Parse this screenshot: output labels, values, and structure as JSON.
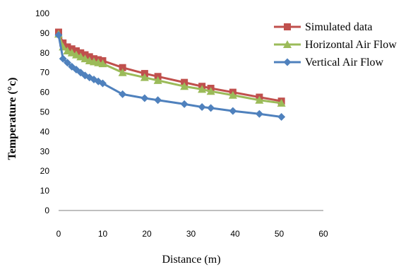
{
  "chart_data": {
    "type": "line",
    "title": "",
    "xlabel": "Distance (m)",
    "ylabel": "Temperature (°c)",
    "xlim": [
      0,
      60
    ],
    "ylim": [
      0,
      100
    ],
    "xticks": [
      0,
      10,
      20,
      30,
      40,
      50,
      60
    ],
    "yticks": [
      0,
      10,
      20,
      30,
      40,
      50,
      60,
      70,
      80,
      90,
      100
    ],
    "grid": false,
    "legend_position": "top-right",
    "series": [
      {
        "name": "Simulated data",
        "color": "#c0504d",
        "marker": "square",
        "x": [
          0,
          1,
          2,
          3,
          4,
          5,
          6,
          7,
          8,
          9,
          10,
          14.5,
          19.5,
          22.5,
          28.5,
          32.5,
          34.5,
          39.5,
          45.5,
          50.5
        ],
        "y": [
          90.5,
          85,
          83,
          82,
          81,
          80,
          79,
          78,
          77,
          76.5,
          76,
          72.5,
          69.5,
          68,
          65,
          63,
          62,
          60,
          57.5,
          55.5
        ]
      },
      {
        "name": "Horizontal Air Flow",
        "color": "#9bbb59",
        "marker": "triangle",
        "x": [
          0,
          1,
          2,
          3,
          4,
          5,
          6,
          7,
          8,
          9,
          10,
          14.5,
          19.5,
          22.5,
          28.5,
          32.5,
          34.5,
          39.5,
          45.5,
          50.5
        ],
        "y": [
          89.5,
          83,
          81,
          80,
          79,
          78,
          77,
          76,
          75.5,
          75,
          74.5,
          70,
          67.5,
          66,
          63,
          61.5,
          60.5,
          58.5,
          56,
          54.5
        ]
      },
      {
        "name": "Vertical Air Flow",
        "color": "#4f81bd",
        "marker": "diamond",
        "x": [
          0,
          1,
          2,
          3,
          4,
          5,
          6,
          7,
          8,
          9,
          10,
          14.5,
          19.5,
          22.5,
          28.5,
          32.5,
          34.5,
          39.5,
          45.5,
          50.5
        ],
        "y": [
          89,
          77,
          75,
          73,
          71.5,
          70,
          68.5,
          67.5,
          66.5,
          65.5,
          64.5,
          59,
          57,
          56,
          54,
          52.5,
          52,
          50.5,
          49,
          47.5
        ]
      }
    ]
  }
}
